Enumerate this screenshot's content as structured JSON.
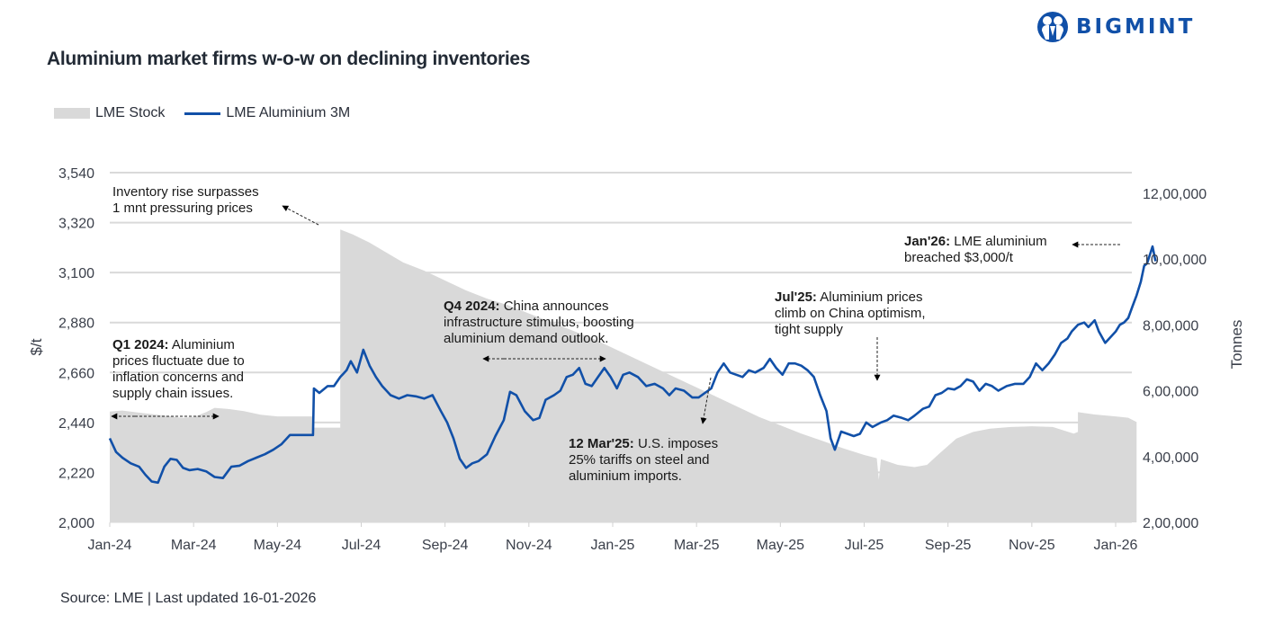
{
  "brand": {
    "name": "BIGMINT",
    "logo_icon": "people-circle-icon",
    "color": "#1150a8"
  },
  "title": "Aluminium market firms w-o-w on declining inventories",
  "source": "Source: LME | Last updated 16-01-2026",
  "legend": [
    {
      "label": "LME Stock",
      "type": "area",
      "color": "#d9d9d9"
    },
    {
      "label": "LME Aluminium 3M",
      "type": "line",
      "color": "#1150a8"
    }
  ],
  "chart_data": {
    "type": "line",
    "title": "Aluminium market firms w-o-w on declining inventories",
    "xlabel": "",
    "ylabel": "$/t",
    "y2label": "Tonnes",
    "x_unit": "months since Jan-2024",
    "xlim": [
      0,
      24.5
    ],
    "ylim": [
      2000,
      3540
    ],
    "y2lim": [
      200000,
      1200000
    ],
    "grid": true,
    "legend_position": "top-left",
    "x_ticks": [
      "Jan-24",
      "Mar-24",
      "May-24",
      "Jul-24",
      "Sep-24",
      "Nov-24",
      "Jan-25",
      "Mar-25",
      "May-25",
      "Jul-25",
      "Sep-25",
      "Nov-25",
      "Jan-26"
    ],
    "y_ticks": [
      "2,000",
      "2,220",
      "2,440",
      "2,660",
      "2,880",
      "3,100",
      "3,320",
      "3,540"
    ],
    "y2_ticks": [
      "2,00,000",
      "4,00,000",
      "6,00,000",
      "8,00,000",
      "10,00,000",
      "12,00,000"
    ],
    "series": [
      {
        "name": "LME Stock",
        "type": "area",
        "axis": "right",
        "color": "#d9d9d9",
        "points": [
          [
            0,
            537000
          ],
          [
            0.3,
            540000
          ],
          [
            0.8,
            532000
          ],
          [
            1.3,
            525000
          ],
          [
            1.7,
            518000
          ],
          [
            2.0,
            520000
          ],
          [
            2.3,
            535000
          ],
          [
            2.5,
            548000
          ],
          [
            2.8,
            545000
          ],
          [
            3.2,
            538000
          ],
          [
            3.6,
            527000
          ],
          [
            4.0,
            522000
          ],
          [
            4.85,
            522000
          ],
          [
            4.85,
            488000
          ],
          [
            5.5,
            488000
          ],
          [
            5.5,
            1090000
          ],
          [
            5.8,
            1075000
          ],
          [
            6.2,
            1050000
          ],
          [
            6.6,
            1020000
          ],
          [
            7.0,
            990000
          ],
          [
            7.5,
            965000
          ],
          [
            8.0,
            935000
          ],
          [
            8.5,
            905000
          ],
          [
            9.0,
            880000
          ],
          [
            9.5,
            860000
          ],
          [
            10.0,
            835000
          ],
          [
            10.5,
            810000
          ],
          [
            11.0,
            785000
          ],
          [
            11.5,
            760000
          ],
          [
            12.0,
            730000
          ],
          [
            12.5,
            700000
          ],
          [
            13.0,
            670000
          ],
          [
            13.5,
            640000
          ],
          [
            14.0,
            610000
          ],
          [
            14.5,
            580000
          ],
          [
            15.0,
            550000
          ],
          [
            15.5,
            520000
          ],
          [
            16.0,
            495000
          ],
          [
            16.5,
            470000
          ],
          [
            17.0,
            448000
          ],
          [
            17.5,
            425000
          ],
          [
            18.0,
            405000
          ],
          [
            18.3,
            395000
          ],
          [
            18.35,
            330000
          ],
          [
            18.4,
            392000
          ],
          [
            18.8,
            375000
          ],
          [
            19.2,
            368000
          ],
          [
            19.5,
            375000
          ],
          [
            19.8,
            410000
          ],
          [
            20.2,
            455000
          ],
          [
            20.6,
            475000
          ],
          [
            21.0,
            485000
          ],
          [
            21.5,
            490000
          ],
          [
            22.0,
            492000
          ],
          [
            22.5,
            490000
          ],
          [
            23.0,
            470000
          ],
          [
            23.1,
            475000
          ],
          [
            23.1,
            535000
          ],
          [
            23.5,
            528000
          ],
          [
            24.0,
            522000
          ],
          [
            24.3,
            518000
          ],
          [
            24.5,
            505000
          ]
        ]
      },
      {
        "name": "LME Aluminium 3M",
        "type": "line",
        "axis": "left",
        "color": "#1150a8",
        "points": [
          [
            0,
            2370
          ],
          [
            0.15,
            2310
          ],
          [
            0.3,
            2285
          ],
          [
            0.5,
            2260
          ],
          [
            0.7,
            2245
          ],
          [
            0.85,
            2210
          ],
          [
            1.0,
            2180
          ],
          [
            1.15,
            2175
          ],
          [
            1.3,
            2245
          ],
          [
            1.45,
            2280
          ],
          [
            1.6,
            2275
          ],
          [
            1.75,
            2240
          ],
          [
            1.9,
            2230
          ],
          [
            2.1,
            2235
          ],
          [
            2.3,
            2225
          ],
          [
            2.5,
            2200
          ],
          [
            2.7,
            2195
          ],
          [
            2.9,
            2245
          ],
          [
            3.1,
            2250
          ],
          [
            3.3,
            2270
          ],
          [
            3.5,
            2285
          ],
          [
            3.7,
            2300
          ],
          [
            3.9,
            2320
          ],
          [
            4.1,
            2345
          ],
          [
            4.3,
            2385
          ],
          [
            4.85,
            2385
          ],
          [
            4.87,
            2590
          ],
          [
            5.0,
            2570
          ],
          [
            5.2,
            2600
          ],
          [
            5.35,
            2600
          ],
          [
            5.5,
            2640
          ],
          [
            5.65,
            2670
          ],
          [
            5.75,
            2710
          ],
          [
            5.9,
            2660
          ],
          [
            6.05,
            2760
          ],
          [
            6.2,
            2690
          ],
          [
            6.35,
            2640
          ],
          [
            6.5,
            2600
          ],
          [
            6.7,
            2560
          ],
          [
            6.9,
            2545
          ],
          [
            7.1,
            2560
          ],
          [
            7.3,
            2555
          ],
          [
            7.5,
            2545
          ],
          [
            7.7,
            2560
          ],
          [
            7.9,
            2490
          ],
          [
            8.05,
            2440
          ],
          [
            8.2,
            2370
          ],
          [
            8.35,
            2280
          ],
          [
            8.5,
            2240
          ],
          [
            8.65,
            2260
          ],
          [
            8.8,
            2270
          ],
          [
            9.0,
            2300
          ],
          [
            9.2,
            2380
          ],
          [
            9.4,
            2450
          ],
          [
            9.55,
            2575
          ],
          [
            9.7,
            2560
          ],
          [
            9.9,
            2490
          ],
          [
            10.1,
            2450
          ],
          [
            10.25,
            2460
          ],
          [
            10.4,
            2540
          ],
          [
            10.6,
            2560
          ],
          [
            10.75,
            2580
          ],
          [
            10.9,
            2640
          ],
          [
            11.05,
            2650
          ],
          [
            11.2,
            2680
          ],
          [
            11.35,
            2610
          ],
          [
            11.5,
            2600
          ],
          [
            11.65,
            2640
          ],
          [
            11.8,
            2680
          ],
          [
            11.95,
            2640
          ],
          [
            12.1,
            2590
          ],
          [
            12.25,
            2650
          ],
          [
            12.4,
            2660
          ],
          [
            12.6,
            2640
          ],
          [
            12.8,
            2600
          ],
          [
            13.0,
            2610
          ],
          [
            13.2,
            2590
          ],
          [
            13.35,
            2560
          ],
          [
            13.5,
            2590
          ],
          [
            13.7,
            2580
          ],
          [
            13.9,
            2550
          ],
          [
            14.05,
            2550
          ],
          [
            14.2,
            2570
          ],
          [
            14.35,
            2590
          ],
          [
            14.5,
            2660
          ],
          [
            14.65,
            2700
          ],
          [
            14.8,
            2660
          ],
          [
            14.95,
            2650
          ],
          [
            15.1,
            2640
          ],
          [
            15.25,
            2670
          ],
          [
            15.4,
            2660
          ],
          [
            15.6,
            2680
          ],
          [
            15.75,
            2720
          ],
          [
            15.9,
            2680
          ],
          [
            16.05,
            2650
          ],
          [
            16.2,
            2700
          ],
          [
            16.35,
            2700
          ],
          [
            16.5,
            2690
          ],
          [
            16.65,
            2670
          ],
          [
            16.8,
            2640
          ],
          [
            16.95,
            2560
          ],
          [
            17.1,
            2490
          ],
          [
            17.2,
            2370
          ],
          [
            17.3,
            2320
          ],
          [
            17.45,
            2400
          ],
          [
            17.6,
            2390
          ],
          [
            17.75,
            2380
          ],
          [
            17.9,
            2390
          ],
          [
            18.05,
            2440
          ],
          [
            18.2,
            2420
          ],
          [
            18.4,
            2440
          ],
          [
            18.55,
            2450
          ],
          [
            18.7,
            2470
          ],
          [
            18.9,
            2460
          ],
          [
            19.05,
            2450
          ],
          [
            19.2,
            2470
          ],
          [
            19.4,
            2500
          ],
          [
            19.55,
            2510
          ],
          [
            19.7,
            2560
          ],
          [
            19.85,
            2570
          ],
          [
            20.0,
            2590
          ],
          [
            20.15,
            2585
          ],
          [
            20.3,
            2600
          ],
          [
            20.45,
            2630
          ],
          [
            20.6,
            2620
          ],
          [
            20.75,
            2580
          ],
          [
            20.9,
            2610
          ],
          [
            21.05,
            2600
          ],
          [
            21.2,
            2580
          ],
          [
            21.4,
            2600
          ],
          [
            21.6,
            2610
          ],
          [
            21.8,
            2610
          ],
          [
            21.95,
            2640
          ],
          [
            22.1,
            2700
          ],
          [
            22.25,
            2670
          ],
          [
            22.4,
            2700
          ],
          [
            22.55,
            2740
          ],
          [
            22.7,
            2790
          ],
          [
            22.85,
            2810
          ],
          [
            22.95,
            2840
          ],
          [
            23.1,
            2870
          ],
          [
            23.25,
            2880
          ],
          [
            23.35,
            2860
          ],
          [
            23.5,
            2890
          ],
          [
            23.6,
            2840
          ],
          [
            23.75,
            2790
          ],
          [
            23.9,
            2820
          ],
          [
            24.0,
            2840
          ],
          [
            24.1,
            2870
          ],
          [
            24.2,
            2880
          ],
          [
            24.3,
            2900
          ],
          [
            24.4,
            2950
          ],
          [
            24.5,
            3000
          ],
          [
            24.6,
            3060
          ],
          [
            24.68,
            3130
          ],
          [
            24.75,
            3140
          ],
          [
            24.82,
            3180
          ],
          [
            24.88,
            3215
          ],
          [
            24.95,
            3150
          ]
        ]
      }
    ],
    "annotations": [
      {
        "bold": "",
        "lines": [
          "Inventory rise surpasses",
          "1 mnt pressuring prices"
        ]
      },
      {
        "bold": "Q1 2024:",
        "lines": [
          " Aluminium",
          "prices fluctuate due to",
          "inflation concerns and",
          "supply chain issues."
        ]
      },
      {
        "bold": "Q4 2024:",
        "lines": [
          " China announces",
          "infrastructure stimulus, boosting",
          "aluminium demand outlook."
        ]
      },
      {
        "bold": "12 Mar'25:",
        "lines": [
          " U.S. imposes",
          "25% tariffs on steel and",
          "aluminium imports."
        ]
      },
      {
        "bold": "Jul'25:",
        "lines": [
          " Aluminium prices",
          "climb on China optimism,",
          "tight supply"
        ]
      },
      {
        "bold": "Jan'26:",
        "lines": [
          " LME aluminium",
          "breached $3,000/t"
        ]
      }
    ]
  }
}
